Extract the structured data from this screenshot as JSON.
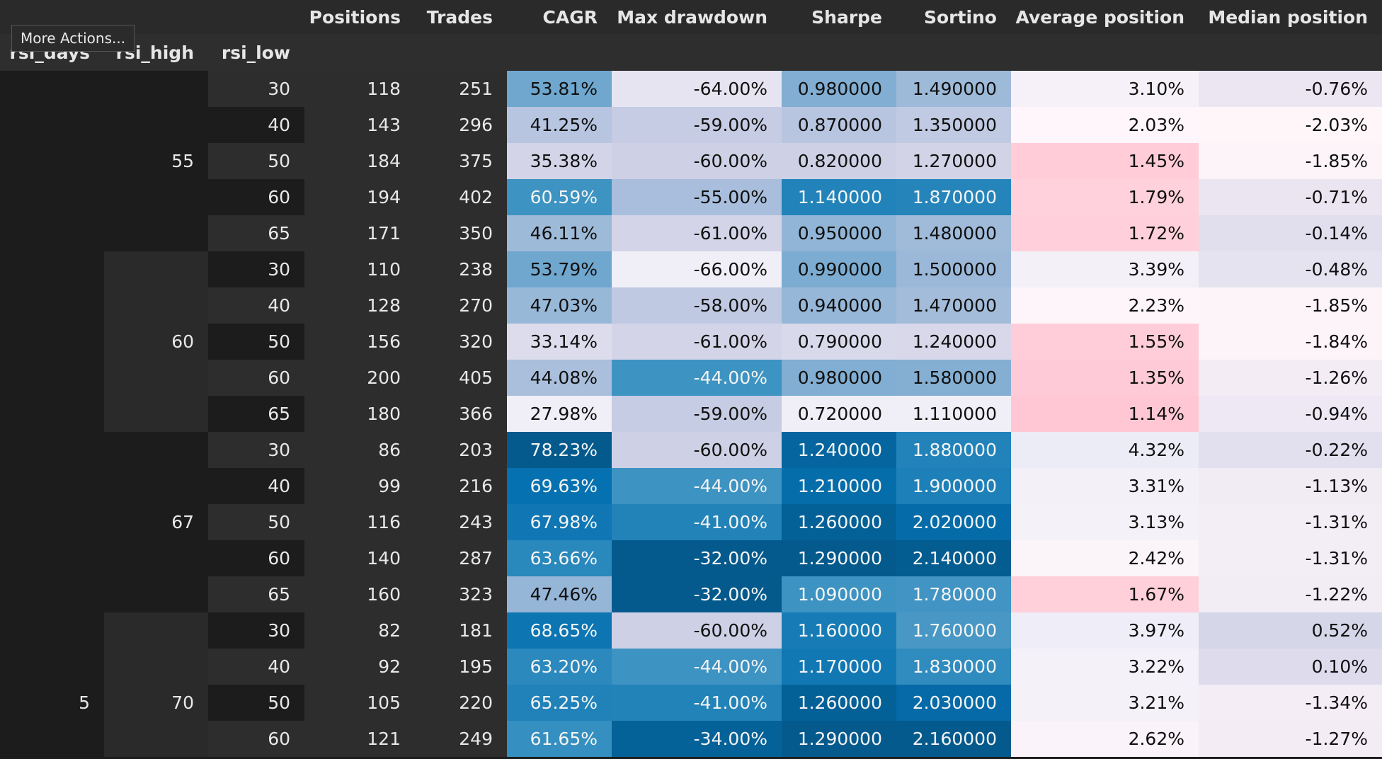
{
  "tooltip": "More Actions...",
  "columns": [
    "Positions",
    "Trades",
    "CAGR",
    "Max drawdown",
    "Sharpe",
    "Sortino",
    "Average position",
    "Median position"
  ],
  "index_names": [
    "rsi_days",
    "rsi_high",
    "rsi_low"
  ],
  "rows": [
    {
      "days": "",
      "high": "",
      "low": "30",
      "positions": "118",
      "trades": "251",
      "cagr": "53.81%",
      "mdd": "-64.00%",
      "sharpe": "0.980000",
      "sortino": "1.490000",
      "avg": "3.10%",
      "median": "-0.76%"
    },
    {
      "days": "",
      "high": "",
      "low": "40",
      "positions": "143",
      "trades": "296",
      "cagr": "41.25%",
      "mdd": "-59.00%",
      "sharpe": "0.870000",
      "sortino": "1.350000",
      "avg": "2.03%",
      "median": "-2.03%"
    },
    {
      "days": "",
      "high": "55",
      "low": "50",
      "positions": "184",
      "trades": "375",
      "cagr": "35.38%",
      "mdd": "-60.00%",
      "sharpe": "0.820000",
      "sortino": "1.270000",
      "avg": "1.45%",
      "median": "-1.85%"
    },
    {
      "days": "",
      "high": "",
      "low": "60",
      "positions": "194",
      "trades": "402",
      "cagr": "60.59%",
      "mdd": "-55.00%",
      "sharpe": "1.140000",
      "sortino": "1.870000",
      "avg": "1.79%",
      "median": "-0.71%"
    },
    {
      "days": "",
      "high": "",
      "low": "65",
      "positions": "171",
      "trades": "350",
      "cagr": "46.11%",
      "mdd": "-61.00%",
      "sharpe": "0.950000",
      "sortino": "1.480000",
      "avg": "1.72%",
      "median": "-0.14%"
    },
    {
      "days": "",
      "high": "",
      "low": "30",
      "positions": "110",
      "trades": "238",
      "cagr": "53.79%",
      "mdd": "-66.00%",
      "sharpe": "0.990000",
      "sortino": "1.500000",
      "avg": "3.39%",
      "median": "-0.48%"
    },
    {
      "days": "",
      "high": "",
      "low": "40",
      "positions": "128",
      "trades": "270",
      "cagr": "47.03%",
      "mdd": "-58.00%",
      "sharpe": "0.940000",
      "sortino": "1.470000",
      "avg": "2.23%",
      "median": "-1.85%"
    },
    {
      "days": "",
      "high": "60",
      "low": "50",
      "positions": "156",
      "trades": "320",
      "cagr": "33.14%",
      "mdd": "-61.00%",
      "sharpe": "0.790000",
      "sortino": "1.240000",
      "avg": "1.55%",
      "median": "-1.84%"
    },
    {
      "days": "",
      "high": "",
      "low": "60",
      "positions": "200",
      "trades": "405",
      "cagr": "44.08%",
      "mdd": "-44.00%",
      "sharpe": "0.980000",
      "sortino": "1.580000",
      "avg": "1.35%",
      "median": "-1.26%"
    },
    {
      "days": "",
      "high": "",
      "low": "65",
      "positions": "180",
      "trades": "366",
      "cagr": "27.98%",
      "mdd": "-59.00%",
      "sharpe": "0.720000",
      "sortino": "1.110000",
      "avg": "1.14%",
      "median": "-0.94%"
    },
    {
      "days": "",
      "high": "",
      "low": "30",
      "positions": "86",
      "trades": "203",
      "cagr": "78.23%",
      "mdd": "-60.00%",
      "sharpe": "1.240000",
      "sortino": "1.880000",
      "avg": "4.32%",
      "median": "-0.22%"
    },
    {
      "days": "",
      "high": "",
      "low": "40",
      "positions": "99",
      "trades": "216",
      "cagr": "69.63%",
      "mdd": "-44.00%",
      "sharpe": "1.210000",
      "sortino": "1.900000",
      "avg": "3.31%",
      "median": "-1.13%"
    },
    {
      "days": "",
      "high": "67",
      "low": "50",
      "positions": "116",
      "trades": "243",
      "cagr": "67.98%",
      "mdd": "-41.00%",
      "sharpe": "1.260000",
      "sortino": "2.020000",
      "avg": "3.13%",
      "median": "-1.31%"
    },
    {
      "days": "",
      "high": "",
      "low": "60",
      "positions": "140",
      "trades": "287",
      "cagr": "63.66%",
      "mdd": "-32.00%",
      "sharpe": "1.290000",
      "sortino": "2.140000",
      "avg": "2.42%",
      "median": "-1.31%"
    },
    {
      "days": "",
      "high": "",
      "low": "65",
      "positions": "160",
      "trades": "323",
      "cagr": "47.46%",
      "mdd": "-32.00%",
      "sharpe": "1.090000",
      "sortino": "1.780000",
      "avg": "1.67%",
      "median": "-1.22%"
    },
    {
      "days": "",
      "high": "",
      "low": "30",
      "positions": "82",
      "trades": "181",
      "cagr": "68.65%",
      "mdd": "-60.00%",
      "sharpe": "1.160000",
      "sortino": "1.760000",
      "avg": "3.97%",
      "median": "0.52%"
    },
    {
      "days": "",
      "high": "",
      "low": "40",
      "positions": "92",
      "trades": "195",
      "cagr": "63.20%",
      "mdd": "-44.00%",
      "sharpe": "1.170000",
      "sortino": "1.830000",
      "avg": "3.22%",
      "median": "0.10%"
    },
    {
      "days": "5",
      "high": "70",
      "low": "50",
      "positions": "105",
      "trades": "220",
      "cagr": "65.25%",
      "mdd": "-41.00%",
      "sharpe": "1.260000",
      "sortino": "2.030000",
      "avg": "3.21%",
      "median": "-1.34%"
    },
    {
      "days": "",
      "high": "",
      "low": "60",
      "positions": "121",
      "trades": "249",
      "cagr": "61.65%",
      "mdd": "-34.00%",
      "sharpe": "1.290000",
      "sortino": "2.160000",
      "avg": "2.62%",
      "median": "-1.27%"
    }
  ]
}
